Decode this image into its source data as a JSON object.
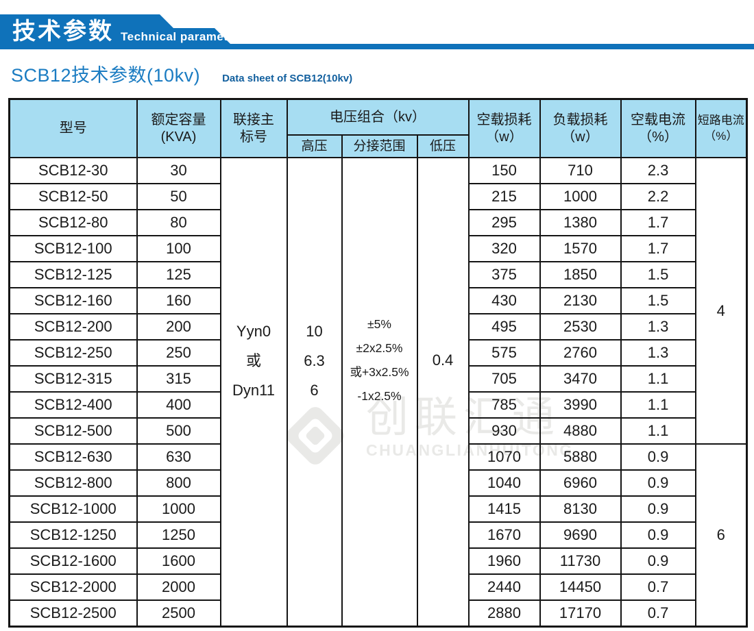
{
  "banner": {
    "title_cn": "技术参数",
    "title_en": "Technical parameter"
  },
  "page_title": {
    "cn": "SCB12技术参数(10kv)",
    "en": "Data sheet of SCB12(10kv)"
  },
  "colors": {
    "banner_blue": "#0f72ba",
    "table_header_bg": "#a7ddf2",
    "border": "#141414",
    "title_cn_blue": "#1b7cc2",
    "title_en_blue": "#115f9e",
    "watermark_gray": "#e9e9e7",
    "text": "#1a1a1a"
  },
  "watermark": {
    "cn": "创联汇通",
    "en": "CHUANGLIANHUITONG"
  },
  "table": {
    "headers": {
      "model": "型号",
      "capacity": [
        "额定容量",
        "(KVA)"
      ],
      "connection": [
        "联接主",
        "标号"
      ],
      "voltage_group": "电压组合（kv）",
      "hv": "高压",
      "tap": "分接范围",
      "lv": "低压",
      "no_load_loss": [
        "空载损耗",
        "（w）"
      ],
      "load_loss": [
        "负载损耗",
        "（w）"
      ],
      "no_load_current": [
        "空载电流",
        "（%）"
      ],
      "short_circuit_current": [
        "短路电流",
        "（%）"
      ]
    },
    "merged": {
      "connection": [
        "Yyn0",
        "或",
        "Dyn11"
      ],
      "hv": [
        "10",
        "6.3",
        "6"
      ],
      "tap": [
        "±5%",
        "±2x2.5%",
        "或+3x2.5%",
        "-1x2.5%"
      ],
      "lv": "0.4",
      "short_circuit": [
        "4",
        "6"
      ],
      "short_circuit_group_rows": [
        11,
        7
      ]
    },
    "rows": [
      {
        "model": "SCB12-30",
        "capacity": "30",
        "no_load_loss": "150",
        "load_loss": "710",
        "no_load_current": "2.3"
      },
      {
        "model": "SCB12-50",
        "capacity": "50",
        "no_load_loss": "215",
        "load_loss": "1000",
        "no_load_current": "2.2"
      },
      {
        "model": "SCB12-80",
        "capacity": "80",
        "no_load_loss": "295",
        "load_loss": "1380",
        "no_load_current": "1.7"
      },
      {
        "model": "SCB12-100",
        "capacity": "100",
        "no_load_loss": "320",
        "load_loss": "1570",
        "no_load_current": "1.7"
      },
      {
        "model": "SCB12-125",
        "capacity": "125",
        "no_load_loss": "375",
        "load_loss": "1850",
        "no_load_current": "1.5"
      },
      {
        "model": "SCB12-160",
        "capacity": "160",
        "no_load_loss": "430",
        "load_loss": "2130",
        "no_load_current": "1.5"
      },
      {
        "model": "SCB12-200",
        "capacity": "200",
        "no_load_loss": "495",
        "load_loss": "2530",
        "no_load_current": "1.3"
      },
      {
        "model": "SCB12-250",
        "capacity": "250",
        "no_load_loss": "575",
        "load_loss": "2760",
        "no_load_current": "1.3"
      },
      {
        "model": "SCB12-315",
        "capacity": "315",
        "no_load_loss": "705",
        "load_loss": "3470",
        "no_load_current": "1.1"
      },
      {
        "model": "SCB12-400",
        "capacity": "400",
        "no_load_loss": "785",
        "load_loss": "3990",
        "no_load_current": "1.1"
      },
      {
        "model": "SCB12-500",
        "capacity": "500",
        "no_load_loss": "930",
        "load_loss": "4880",
        "no_load_current": "1.1"
      },
      {
        "model": "SCB12-630",
        "capacity": "630",
        "no_load_loss": "1070",
        "load_loss": "5880",
        "no_load_current": "0.9"
      },
      {
        "model": "SCB12-800",
        "capacity": "800",
        "no_load_loss": "1040",
        "load_loss": "6960",
        "no_load_current": "0.9"
      },
      {
        "model": "SCB12-1000",
        "capacity": "1000",
        "no_load_loss": "1415",
        "load_loss": "8130",
        "no_load_current": "0.9"
      },
      {
        "model": "SCB12-1250",
        "capacity": "1250",
        "no_load_loss": "1670",
        "load_loss": "9690",
        "no_load_current": "0.9"
      },
      {
        "model": "SCB12-1600",
        "capacity": "1600",
        "no_load_loss": "1960",
        "load_loss": "11730",
        "no_load_current": "0.9"
      },
      {
        "model": "SCB12-2000",
        "capacity": "2000",
        "no_load_loss": "2440",
        "load_loss": "14450",
        "no_load_current": "0.7"
      },
      {
        "model": "SCB12-2500",
        "capacity": "2500",
        "no_load_loss": "2880",
        "load_loss": "17170",
        "no_load_current": "0.7"
      }
    ]
  }
}
